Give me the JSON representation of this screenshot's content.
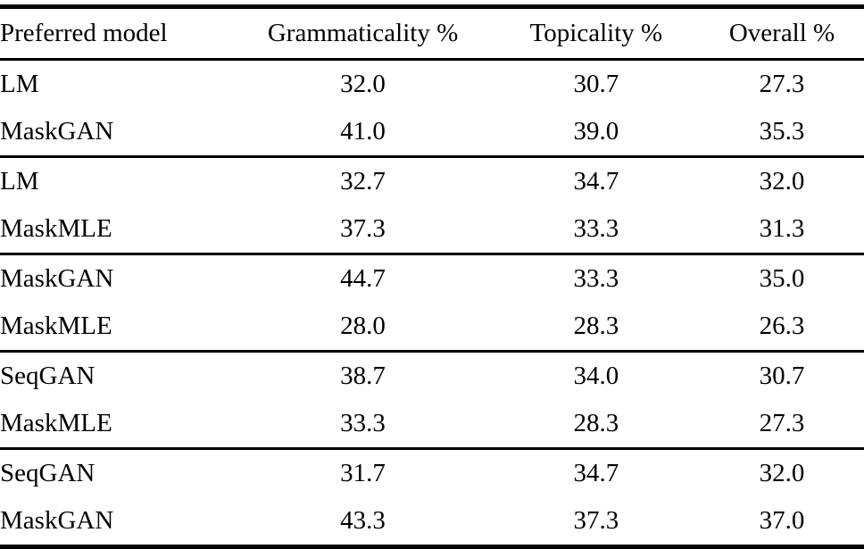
{
  "table": {
    "columns": [
      "Preferred model",
      "Grammaticality %",
      "Topicality %",
      "Overall %"
    ],
    "groups": [
      {
        "rows": [
          {
            "model": "LM",
            "bold": false,
            "values": [
              "32.0",
              "30.7",
              "27.3"
            ]
          },
          {
            "model": "MaskGAN",
            "bold": true,
            "values": [
              "41.0",
              "39.0",
              "35.3"
            ]
          }
        ]
      },
      {
        "rows": [
          {
            "model": "LM",
            "bold": true,
            "values": [
              "32.7",
              "34.7",
              "32.0"
            ]
          },
          {
            "model": "MaskMLE",
            "bold": false,
            "values": [
              "37.3",
              "33.3",
              "31.3"
            ]
          }
        ]
      },
      {
        "rows": [
          {
            "model": "MaskGAN",
            "bold": true,
            "values": [
              "44.7",
              "33.3",
              "35.0"
            ]
          },
          {
            "model": "MaskMLE",
            "bold": false,
            "values": [
              "28.0",
              "28.3",
              "26.3"
            ]
          }
        ]
      },
      {
        "rows": [
          {
            "model": "SeqGAN",
            "bold": true,
            "values": [
              "38.7",
              "34.0",
              "30.7"
            ]
          },
          {
            "model": "MaskMLE",
            "bold": false,
            "values": [
              "33.3",
              "28.3",
              "27.3"
            ]
          }
        ]
      },
      {
        "rows": [
          {
            "model": "SeqGAN",
            "bold": false,
            "values": [
              "31.7",
              "34.7",
              "32.0"
            ]
          },
          {
            "model": "MaskGAN",
            "bold": true,
            "values": [
              "43.3",
              "37.3",
              "37.0"
            ]
          }
        ]
      }
    ],
    "colors": {
      "text": "#000000",
      "rule": "#000000",
      "background": "#ffffff"
    }
  },
  "chart_data": {
    "type": "table",
    "title": "",
    "columns": [
      "Preferred model",
      "Grammaticality %",
      "Topicality %",
      "Overall %"
    ],
    "rows": [
      [
        "LM",
        32.0,
        30.7,
        27.3
      ],
      [
        "MaskGAN",
        41.0,
        39.0,
        35.3
      ],
      [
        "LM",
        32.7,
        34.7,
        32.0
      ],
      [
        "MaskMLE",
        37.3,
        33.3,
        31.3
      ],
      [
        "MaskGAN",
        44.7,
        33.3,
        35.0
      ],
      [
        "MaskMLE",
        28.0,
        28.3,
        26.3
      ],
      [
        "SeqGAN",
        38.7,
        34.0,
        30.7
      ],
      [
        "MaskMLE",
        33.3,
        28.3,
        27.3
      ],
      [
        "SeqGAN",
        31.7,
        34.7,
        32.0
      ],
      [
        "MaskGAN",
        43.3,
        37.3,
        37.0
      ]
    ],
    "bold_rows": [
      1,
      2,
      4,
      6,
      9
    ]
  }
}
